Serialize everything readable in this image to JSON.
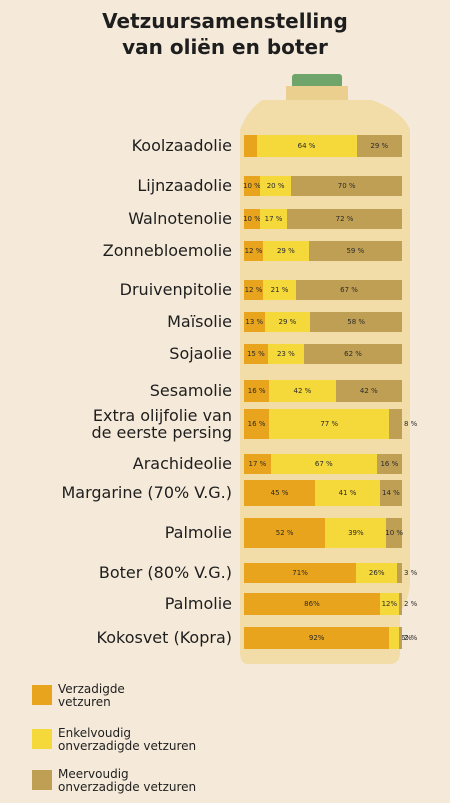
{
  "title_line1": "Vetzuursamenstelling",
  "title_line2": "van oliën en boter",
  "colors": {
    "saturated": "#e8a41c",
    "mono": "#f5d83a",
    "poly": "#bf9f54",
    "background": "#f5ead9",
    "bottle": "#f2dda9",
    "cap": "#6fa56a"
  },
  "chart_data": {
    "type": "bar",
    "stacked": true,
    "orientation": "horizontal",
    "title": "Vetzuursamenstelling van oliën en boter",
    "categories": [
      "Koolzaadolie",
      "Lijnzaadolie",
      "Walnotenolie",
      "Zonnebloemolie",
      "Druivenpitolie",
      "Maïsolie",
      "Sojaolie",
      "Sesamolie",
      "Extra olijfolie van de eerste persing",
      "Arachideolie",
      "Margarine (70% V.G.)",
      "Palmolie",
      "Boter (80% V.G.)",
      "Palmolie",
      "Kokosvet (Kopra)"
    ],
    "series": [
      {
        "name": "Verzadigde vetzuren",
        "values": [
          8,
          10,
          10,
          12,
          12,
          13,
          15,
          16,
          16,
          17,
          45,
          52,
          71,
          86,
          92
        ]
      },
      {
        "name": "Enkelvoudig onverzadigde vetzuren",
        "values": [
          64,
          20,
          17,
          29,
          21,
          29,
          23,
          42,
          77,
          67,
          41,
          39,
          26,
          12,
          6
        ]
      },
      {
        "name": "Meervoudig onverzadigde vetzuren",
        "values": [
          29,
          70,
          72,
          59,
          67,
          58,
          62,
          42,
          8,
          16,
          14,
          10,
          3,
          2,
          2
        ]
      }
    ],
    "value_labels": [
      [
        "8 %",
        "64 %",
        "29 %"
      ],
      [
        "10 %",
        "20 %",
        "70 %"
      ],
      [
        "10 %",
        "17 %",
        "72 %"
      ],
      [
        "12 %",
        "29 %",
        "59 %"
      ],
      [
        "12 %",
        "21 %",
        "67 %"
      ],
      [
        "13 %",
        "29 %",
        "58 %"
      ],
      [
        "15 %",
        "23 %",
        "62 %"
      ],
      [
        "16 %",
        "42 %",
        "42 %"
      ],
      [
        "16 %",
        "77 %",
        "8 %"
      ],
      [
        "17 %",
        "67 %",
        "16 %"
      ],
      [
        "45 %",
        "41 %",
        "14 %"
      ],
      [
        "52 %",
        "39%",
        "10 %"
      ],
      [
        "71%",
        "26%",
        "3 %"
      ],
      [
        "86%",
        "12%",
        "2 %"
      ],
      [
        "92%",
        "6%",
        "2 %"
      ]
    ],
    "legend_position": "bottom-left"
  },
  "category_labels": [
    [
      "Koolzaadolie"
    ],
    [
      "Lijnzaadolie"
    ],
    [
      "Walnotenolie"
    ],
    [
      "Zonnebloemolie"
    ],
    [
      "Druivenpitolie"
    ],
    [
      "Maïsolie"
    ],
    [
      "Sojaolie"
    ],
    [
      "Sesamolie"
    ],
    [
      "Extra olijfolie van",
      "de eerste persing"
    ],
    [
      "Arachideolie"
    ],
    [
      "Margarine (70% V.G.)"
    ],
    [
      "Palmolie"
    ],
    [
      "Boter (80% V.G.)"
    ],
    [
      "Palmolie"
    ],
    [
      "Kokosvet (Kopra)"
    ]
  ],
  "legend": [
    {
      "lines": [
        "Verzadigde",
        "vetzuren"
      ],
      "color": "#e8a41c"
    },
    {
      "lines": [
        "Enkelvoudig",
        "onverzadigde vetzuren"
      ],
      "color": "#f5d83a"
    },
    {
      "lines": [
        "Meervoudig",
        "onverzadigde vetzuren"
      ],
      "color": "#bf9f54"
    }
  ]
}
